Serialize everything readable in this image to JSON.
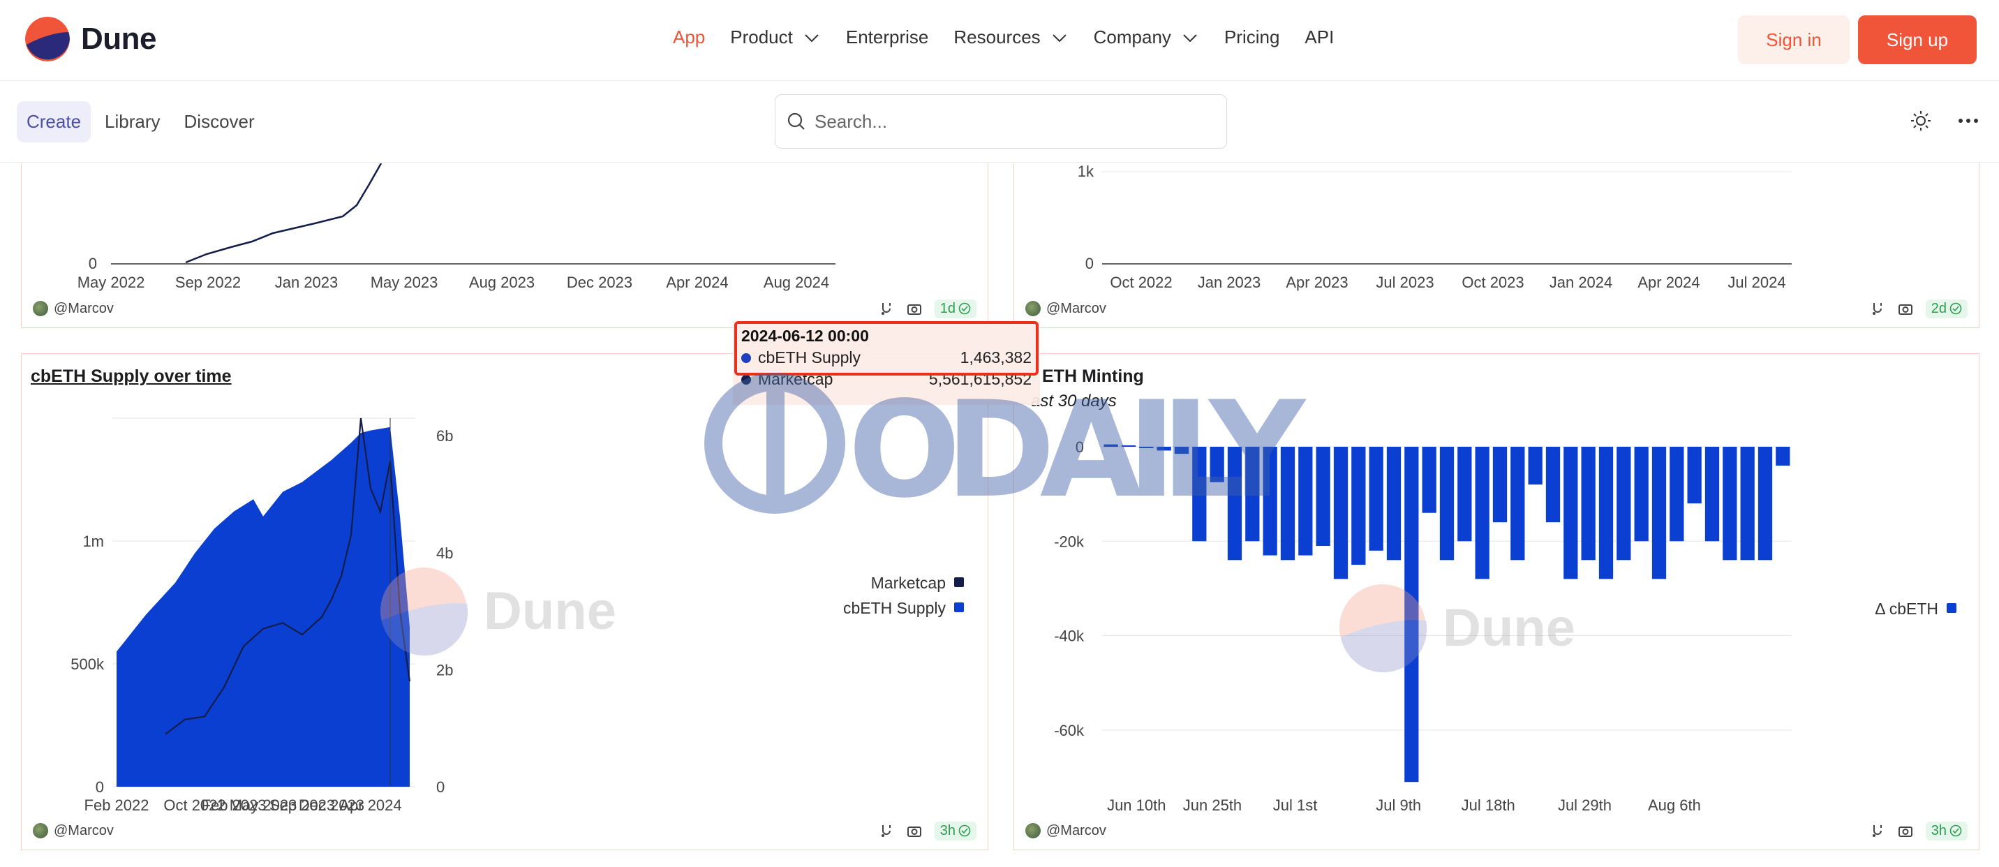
{
  "topbar": {
    "brand": "Dune",
    "nav": [
      {
        "label": "App",
        "active": true,
        "dropdown": false
      },
      {
        "label": "Product",
        "active": false,
        "dropdown": true
      },
      {
        "label": "Enterprise",
        "active": false,
        "dropdown": false
      },
      {
        "label": "Resources",
        "active": false,
        "dropdown": true
      },
      {
        "label": "Company",
        "active": false,
        "dropdown": true
      },
      {
        "label": "Pricing",
        "active": false,
        "dropdown": false
      },
      {
        "label": "API",
        "active": false,
        "dropdown": false
      }
    ],
    "sign_in": "Sign in",
    "sign_up": "Sign up"
  },
  "subbar": {
    "tabs": [
      "Create",
      "Library",
      "Discover"
    ],
    "active_tab": "Create",
    "search_placeholder": "Search...",
    "icons": [
      "theme-toggle-icon",
      "more-icon"
    ]
  },
  "panels": {
    "top_left": {
      "x_ticks": [
        "May 2022",
        "Sep 2022",
        "Jan 2023",
        "May 2023",
        "Aug 2023",
        "Dec 2023",
        "Apr 2024",
        "Aug 2024"
      ],
      "y_ticks": [
        "0"
      ],
      "author": "@Marcov",
      "badge": "1d"
    },
    "top_right": {
      "x_ticks": [
        "Oct 2022",
        "Jan 2023",
        "Apr 2023",
        "Jul 2023",
        "Oct 2023",
        "Jan 2024",
        "Apr 2024",
        "Jul 2024"
      ],
      "y_ticks": [
        "0",
        "1k"
      ],
      "author": "@Marcov",
      "badge": "2d"
    },
    "bottom_left": {
      "title": "cbETH Supply over time",
      "author": "@Marcov",
      "badge": "3h"
    },
    "bottom_right": {
      "title": "ETH Minting",
      "subtitle": "ast 30 days",
      "author": "@Marcov",
      "badge": "3h"
    }
  },
  "tooltip": {
    "header": "2024-06-12 00:00",
    "rows": [
      {
        "label": "cbETH Supply",
        "value": "1,463,382",
        "color": "#1f3fbf"
      },
      {
        "label": "Marketcap",
        "value": "5,561,615,852",
        "color": "#141c4a"
      }
    ]
  },
  "watermarks": {
    "odaily": "ODAILY",
    "dune": "Dune"
  },
  "chart_data": [
    {
      "type": "area",
      "title": "cbETH Supply over time",
      "x_ticks": [
        "Feb 2022",
        "Oct 2022",
        "Feb 2023",
        "May 2023",
        "Sep 2023",
        "Dec 2023",
        "Apr 2024"
      ],
      "y_left_ticks": [
        "0",
        "500k",
        "1m"
      ],
      "y_right_ticks": [
        "0",
        "2b",
        "4b",
        "6b"
      ],
      "legend": [
        {
          "name": "Marketcap",
          "color": "#141c4a"
        },
        {
          "name": "cbETH Supply",
          "color": "#0a3fd1"
        }
      ],
      "legend_position": "right",
      "series": [
        {
          "name": "cbETH Supply",
          "axis": "left",
          "x": [
            "2022-02",
            "2022-05",
            "2022-08",
            "2022-10",
            "2022-12",
            "2023-02",
            "2023-04",
            "2023-05",
            "2023-07",
            "2023-09",
            "2023-11",
            "2023-12",
            "2024-02",
            "2024-03",
            "2024-04",
            "2024-06",
            "2024-07",
            "2024-08"
          ],
          "values": [
            550000,
            700000,
            830000,
            950000,
            1050000,
            1120000,
            1170000,
            1100000,
            1200000,
            1240000,
            1300000,
            1330000,
            1400000,
            1440000,
            1450000,
            1463382,
            1100000,
            650000
          ]
        },
        {
          "name": "Marketcap",
          "axis": "right",
          "x": [
            "2022-07",
            "2022-09",
            "2022-11",
            "2023-01",
            "2023-03",
            "2023-05",
            "2023-07",
            "2023-09",
            "2023-11",
            "2023-12",
            "2024-01",
            "2024-02",
            "2024-03",
            "2024-04",
            "2024-05",
            "2024-06",
            "2024-07",
            "2024-08"
          ],
          "values": [
            900000000,
            1150000000,
            1200000000,
            1700000000,
            2400000000,
            2700000000,
            2800000000,
            2600000000,
            2900000000,
            3200000000,
            3600000000,
            4300000000,
            6300000000,
            5100000000,
            4700000000,
            5561615852,
            3000000000,
            1800000000
          ]
        }
      ]
    },
    {
      "type": "bar",
      "title": "ETH Minting",
      "subtitle": "ast 30 days",
      "x_ticks": [
        "Jun 10th",
        "Jun 25th",
        "Jul 1st",
        "Jul 9th",
        "Jul 18th",
        "Jul 29th",
        "Aug 6th"
      ],
      "y_ticks": [
        "0",
        "-20k",
        "-40k",
        "-60k"
      ],
      "ylim": [
        -72000,
        0
      ],
      "legend": [
        {
          "name": "Δ cbETH",
          "color": "#0a3fd1"
        }
      ],
      "legend_position": "right",
      "series": [
        {
          "name": "Δ cbETH",
          "values": [
            500,
            300,
            -300,
            -800,
            -1500,
            -20000,
            -7500,
            -24000,
            -20000,
            -23000,
            -24000,
            -23000,
            -21000,
            -28000,
            -25000,
            -22000,
            -24000,
            -71000,
            -14000,
            -24000,
            -20000,
            -28000,
            -16000,
            -24000,
            -8000,
            -16000,
            -28000,
            -24000,
            -28000,
            -24000,
            -20000,
            -28000,
            -20000,
            -12000,
            -20000,
            -24000,
            -24000,
            -24000,
            -4000
          ]
        }
      ]
    },
    {
      "type": "line",
      "x_ticks": [
        "May 2022",
        "Sep 2022",
        "Jan 2023",
        "May 2023",
        "Aug 2023",
        "Dec 2023",
        "Apr 2024",
        "Aug 2024"
      ],
      "y_ticks": [
        "0"
      ],
      "series": [
        {
          "name": "",
          "values": [
            0,
            0,
            100,
            200,
            280,
            380,
            950,
            1500
          ]
        }
      ]
    },
    {
      "type": "line",
      "x_ticks": [
        "Oct 2022",
        "Jan 2023",
        "Apr 2023",
        "Jul 2023",
        "Oct 2023",
        "Jan 2024",
        "Apr 2024",
        "Jul 2024"
      ],
      "y_ticks": [
        "0",
        "1k"
      ],
      "series": [
        {
          "name": "",
          "values": []
        }
      ]
    }
  ]
}
